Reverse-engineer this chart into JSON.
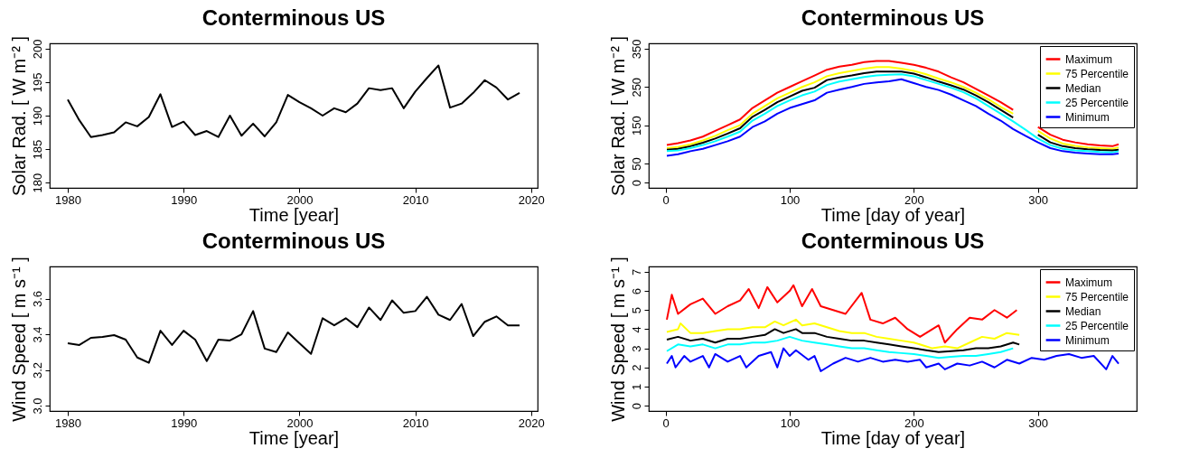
{
  "chart_data": [
    {
      "type": "line",
      "title": "Conterminous US",
      "xlabel": "Time [year]",
      "ylabel": "Solar Rad.  [ W m⁻² ]",
      "grid": false,
      "legend": false,
      "xlim": [
        1978.44,
        2020.56
      ],
      "xticks": [
        1980,
        1990,
        2000,
        2010,
        2020
      ],
      "ylim": [
        179.2,
        200.8
      ],
      "yticks": [
        180,
        185,
        190,
        195,
        200
      ],
      "x": [
        1980,
        1981,
        1982,
        1983,
        1984,
        1985,
        1986,
        1987,
        1988,
        1989,
        1990,
        1991,
        1992,
        1993,
        1994,
        1995,
        1996,
        1997,
        1998,
        1999,
        2000,
        2001,
        2002,
        2003,
        2004,
        2005,
        2006,
        2007,
        2008,
        2009,
        2010,
        2011,
        2012,
        2013,
        2014,
        2015,
        2016,
        2017,
        2018,
        2019
      ],
      "series": [
        {
          "color": "#000000",
          "values": [
            192.4,
            189.3,
            186.8,
            187.1,
            187.5,
            189.0,
            188.4,
            189.8,
            193.2,
            188.3,
            189.1,
            187.1,
            187.7,
            186.8,
            190.0,
            187.0,
            188.8,
            186.9,
            189.0,
            193.1,
            192.0,
            191.1,
            190.0,
            191.1,
            190.5,
            191.8,
            194.1,
            193.8,
            194.1,
            191.1,
            193.6,
            195.6,
            197.5,
            191.2,
            191.8,
            193.4,
            195.3,
            194.2,
            192.4,
            193.4
          ]
        }
      ]
    },
    {
      "type": "line",
      "title": "Conterminous US",
      "xlabel": "Time [day of year]",
      "ylabel": "Solar Rad.  [ W m⁻² ]",
      "grid": false,
      "legend": "top right",
      "xlim": [
        -13.56,
        379.56
      ],
      "xticks": [
        0,
        100,
        200,
        300
      ],
      "ylim": [
        -14,
        364
      ],
      "yticks": [
        0,
        50,
        150,
        250,
        350
      ],
      "x": [
        1,
        10,
        20,
        30,
        40,
        50,
        60,
        70,
        80,
        90,
        100,
        110,
        120,
        130,
        140,
        150,
        160,
        170,
        180,
        190,
        200,
        210,
        220,
        230,
        240,
        250,
        260,
        270,
        280,
        290,
        300,
        310,
        320,
        330,
        340,
        350,
        360,
        365
      ],
      "series": [
        {
          "name": "Maximum",
          "color": "#ff0000",
          "values": [
            98,
            103,
            110,
            120,
            135,
            150,
            165,
            195,
            215,
            235,
            250,
            265,
            280,
            295,
            303,
            308,
            315,
            318,
            318,
            313,
            308,
            300,
            290,
            275,
            262,
            245,
            228,
            210,
            190,
            null,
            145,
            125,
            112,
            105,
            100,
            97,
            95,
            100
          ]
        },
        {
          "name": "75 Percentile",
          "color": "#ffff00",
          "values": [
            90,
            93,
            100,
            110,
            122,
            137,
            150,
            180,
            200,
            220,
            235,
            250,
            262,
            278,
            286,
            292,
            298,
            302,
            302,
            298,
            292,
            283,
            272,
            262,
            250,
            235,
            218,
            198,
            180,
            null,
            135,
            115,
            102,
            96,
            92,
            90,
            88,
            92
          ]
        },
        {
          "name": "Median",
          "color": "#000000",
          "values": [
            86,
            88,
            95,
            104,
            115,
            128,
            142,
            172,
            190,
            210,
            225,
            240,
            248,
            268,
            275,
            280,
            286,
            290,
            290,
            290,
            285,
            275,
            264,
            254,
            243,
            228,
            210,
            190,
            170,
            null,
            125,
            105,
            95,
            90,
            87,
            85,
            84,
            86
          ]
        },
        {
          "name": "25 Percentile",
          "color": "#00ffff",
          "values": [
            82,
            84,
            90,
            98,
            108,
            120,
            133,
            162,
            180,
            200,
            215,
            228,
            238,
            255,
            264,
            270,
            276,
            280,
            282,
            283,
            278,
            268,
            258,
            248,
            236,
            220,
            200,
            180,
            160,
            138,
            115,
            98,
            88,
            84,
            82,
            80,
            79,
            82
          ]
        },
        {
          "name": "Minimum",
          "color": "#0000ff",
          "values": [
            70,
            74,
            82,
            88,
            98,
            108,
            120,
            145,
            160,
            180,
            195,
            205,
            215,
            235,
            243,
            250,
            258,
            262,
            265,
            270,
            260,
            250,
            242,
            230,
            215,
            200,
            180,
            162,
            140,
            122,
            105,
            90,
            82,
            78,
            76,
            74,
            74,
            76
          ]
        }
      ]
    },
    {
      "type": "line",
      "title": "Conterminous US",
      "xlabel": "Time [year]",
      "ylabel": "Wind Speed [ m s⁻¹ ]",
      "grid": false,
      "legend": false,
      "xlim": [
        1978.44,
        2020.56
      ],
      "xticks": [
        1980,
        1990,
        2000,
        2010,
        2020
      ],
      "ylim": [
        2.97,
        3.78
      ],
      "yticks": [
        {
          "value": 3,
          "label": "3.0"
        },
        3.2,
        3.4,
        3.6
      ],
      "x": [
        1980,
        1981,
        1982,
        1983,
        1984,
        1985,
        1986,
        1987,
        1988,
        1989,
        1990,
        1991,
        1992,
        1993,
        1994,
        1995,
        1996,
        1997,
        1998,
        1999,
        2000,
        2001,
        2002,
        2003,
        2004,
        2005,
        2006,
        2007,
        2008,
        2009,
        2010,
        2011,
        2012,
        2013,
        2014,
        2015,
        2016,
        2017,
        2018,
        2019
      ],
      "series": [
        {
          "color": "#000000",
          "values": [
            3.35,
            3.34,
            3.38,
            3.385,
            3.395,
            3.37,
            3.27,
            3.24,
            3.42,
            3.34,
            3.42,
            3.37,
            3.25,
            3.37,
            3.365,
            3.4,
            3.53,
            3.32,
            3.3,
            3.41,
            3.35,
            3.29,
            3.49,
            3.45,
            3.49,
            3.44,
            3.55,
            3.48,
            3.59,
            3.52,
            3.53,
            3.61,
            3.51,
            3.48,
            3.57,
            3.39,
            3.47,
            3.5,
            3.45,
            3.45
          ]
        }
      ]
    },
    {
      "type": "line",
      "title": "Conterminous US",
      "xlabel": "Time [day of year]",
      "ylabel": "Wind Speed [ m s⁻¹ ]",
      "grid": false,
      "legend": "top right",
      "xlim": [
        -13.56,
        379.56
      ],
      "xticks": [
        0,
        100,
        200,
        300
      ],
      "ylim": [
        -0.28,
        7.28
      ],
      "yticks": [
        0,
        1,
        2,
        3,
        4,
        5,
        6,
        7
      ],
      "series": [
        {
          "name": "Maximum",
          "color": "#ff0000",
          "x": [
            1,
            5,
            10,
            20,
            30,
            40,
            50,
            60,
            67,
            75,
            82,
            90,
            100,
            103,
            110,
            118,
            125,
            135,
            145,
            158,
            165,
            175,
            185,
            195,
            205,
            210,
            220,
            225,
            235,
            245,
            255,
            265,
            275,
            283
          ],
          "values": [
            4.5,
            5.8,
            4.8,
            5.3,
            5.6,
            4.8,
            5.2,
            5.5,
            6.1,
            5.1,
            6.2,
            5.4,
            6.0,
            6.3,
            5.2,
            6.1,
            5.2,
            5.0,
            4.8,
            5.9,
            4.5,
            4.3,
            4.6,
            4.0,
            3.6,
            3.8,
            4.2,
            3.3,
            4.0,
            4.6,
            4.5,
            5.0,
            4.6,
            5.0
          ]
        },
        {
          "name": "75 Percentile",
          "color": "#ffff00",
          "x": [
            1,
            10,
            12,
            20,
            30,
            40,
            50,
            60,
            70,
            80,
            88,
            95,
            105,
            110,
            120,
            130,
            140,
            150,
            160,
            170,
            180,
            190,
            200,
            210,
            215,
            225,
            235,
            245,
            255,
            265,
            275,
            285
          ],
          "values": [
            3.85,
            4.0,
            4.3,
            3.8,
            3.8,
            3.9,
            4.0,
            4.0,
            4.1,
            4.1,
            4.4,
            4.2,
            4.5,
            4.2,
            4.3,
            4.1,
            3.9,
            3.8,
            3.8,
            3.6,
            3.5,
            3.4,
            3.3,
            3.1,
            3.0,
            3.1,
            3.0,
            3.3,
            3.6,
            3.5,
            3.8,
            3.7
          ]
        },
        {
          "name": "Median",
          "color": "#000000",
          "x": [
            1,
            10,
            20,
            30,
            40,
            50,
            60,
            70,
            80,
            88,
            95,
            105,
            110,
            120,
            130,
            140,
            150,
            160,
            170,
            180,
            190,
            200,
            210,
            220,
            230,
            240,
            250,
            260,
            270,
            280,
            285
          ],
          "values": [
            3.45,
            3.6,
            3.4,
            3.5,
            3.3,
            3.5,
            3.5,
            3.6,
            3.7,
            4.0,
            3.8,
            4.0,
            3.8,
            3.8,
            3.6,
            3.5,
            3.4,
            3.4,
            3.3,
            3.2,
            3.1,
            3.0,
            2.9,
            2.8,
            2.85,
            2.9,
            3.0,
            3.0,
            3.1,
            3.3,
            3.2
          ]
        },
        {
          "name": "25 Percentile",
          "color": "#00ffff",
          "x": [
            1,
            10,
            20,
            30,
            40,
            50,
            60,
            70,
            80,
            90,
            100,
            110,
            120,
            130,
            140,
            150,
            160,
            170,
            180,
            190,
            200,
            210,
            220,
            230,
            240,
            250,
            260,
            270,
            280
          ],
          "values": [
            2.85,
            3.2,
            3.1,
            3.2,
            3.0,
            3.2,
            3.2,
            3.3,
            3.3,
            3.4,
            3.6,
            3.4,
            3.3,
            3.2,
            3.1,
            3.0,
            3.0,
            2.9,
            2.8,
            2.75,
            2.7,
            2.6,
            2.5,
            2.55,
            2.6,
            2.6,
            2.7,
            2.8,
            3.0
          ]
        },
        {
          "name": "Minimum",
          "color": "#0000ff",
          "x": [
            1,
            5,
            8,
            15,
            20,
            30,
            35,
            40,
            50,
            60,
            65,
            75,
            85,
            90,
            95,
            100,
            105,
            115,
            120,
            125,
            135,
            145,
            155,
            165,
            175,
            185,
            195,
            205,
            210,
            220,
            225,
            235,
            245,
            255,
            265,
            275,
            285,
            295,
            305,
            315,
            325,
            335,
            345,
            355,
            360,
            365
          ],
          "values": [
            2.2,
            2.6,
            2.0,
            2.6,
            2.3,
            2.6,
            2.0,
            2.7,
            2.3,
            2.6,
            2.0,
            2.6,
            2.8,
            2.0,
            3.0,
            2.6,
            2.9,
            2.4,
            2.6,
            1.8,
            2.2,
            2.5,
            2.3,
            2.5,
            2.3,
            2.4,
            2.3,
            2.4,
            2.0,
            2.2,
            1.9,
            2.2,
            2.1,
            2.3,
            2.0,
            2.4,
            2.2,
            2.5,
            2.4,
            2.6,
            2.7,
            2.5,
            2.6,
            1.9,
            2.6,
            2.2
          ]
        }
      ]
    }
  ]
}
